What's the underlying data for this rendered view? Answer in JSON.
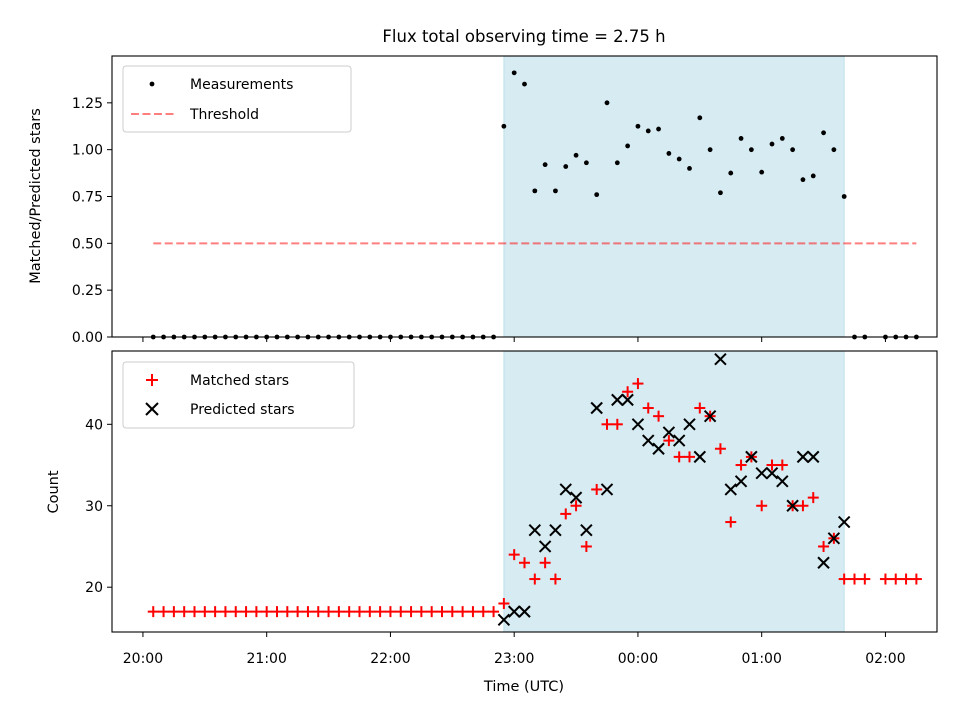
{
  "title": "Flux total observing time = 2.75 h",
  "colors": {
    "span": "#add8e6",
    "threshold": "#ff0000",
    "matched": "#ff0000",
    "predicted": "#000000",
    "measurements": "#000000"
  },
  "chart_data": [
    {
      "type": "scatter",
      "ylabel": "Matched/Predicted stars",
      "ylim": [
        0,
        1.5
      ],
      "yticks": [
        0.0,
        0.25,
        0.5,
        0.75,
        1.0,
        1.25
      ],
      "ytick_labels": [
        "0.00",
        "0.25",
        "0.50",
        "0.75",
        "1.00",
        "1.25"
      ],
      "grid": false,
      "legend": "upper left",
      "shaded_span": {
        "from": "22:55",
        "to": "01:40"
      },
      "threshold": {
        "name": "Threshold",
        "value": 0.5,
        "from": "20:05",
        "to": "02:15",
        "style": "dashed"
      },
      "series": [
        {
          "name": "Measurements",
          "marker": "dot",
          "points": [
            [
              "20:05",
              0
            ],
            [
              "20:10",
              0
            ],
            [
              "20:15",
              0
            ],
            [
              "20:20",
              0
            ],
            [
              "20:25",
              0
            ],
            [
              "20:30",
              0
            ],
            [
              "20:35",
              0
            ],
            [
              "20:40",
              0
            ],
            [
              "20:45",
              0
            ],
            [
              "20:50",
              0
            ],
            [
              "20:55",
              0
            ],
            [
              "21:00",
              0
            ],
            [
              "21:05",
              0
            ],
            [
              "21:10",
              0
            ],
            [
              "21:15",
              0
            ],
            [
              "21:20",
              0
            ],
            [
              "21:25",
              0
            ],
            [
              "21:30",
              0
            ],
            [
              "21:35",
              0
            ],
            [
              "21:40",
              0
            ],
            [
              "21:45",
              0
            ],
            [
              "21:50",
              0
            ],
            [
              "21:55",
              0
            ],
            [
              "22:00",
              0
            ],
            [
              "22:05",
              0
            ],
            [
              "22:10",
              0
            ],
            [
              "22:15",
              0
            ],
            [
              "22:20",
              0
            ],
            [
              "22:25",
              0
            ],
            [
              "22:30",
              0
            ],
            [
              "22:35",
              0
            ],
            [
              "22:40",
              0
            ],
            [
              "22:45",
              0
            ],
            [
              "22:50",
              0
            ],
            [
              "22:55",
              1.125
            ],
            [
              "23:00",
              1.41
            ],
            [
              "23:05",
              1.35
            ],
            [
              "23:10",
              0.78
            ],
            [
              "23:15",
              0.92
            ],
            [
              "23:20",
              0.78
            ],
            [
              "23:25",
              0.91
            ],
            [
              "23:30",
              0.97
            ],
            [
              "23:35",
              0.93
            ],
            [
              "23:40",
              0.76
            ],
            [
              "23:45",
              1.25
            ],
            [
              "23:50",
              0.93
            ],
            [
              "23:55",
              1.02
            ],
            [
              "00:00",
              1.125
            ],
            [
              "00:05",
              1.1
            ],
            [
              "00:10",
              1.11
            ],
            [
              "00:15",
              0.98
            ],
            [
              "00:20",
              0.95
            ],
            [
              "00:25",
              0.9
            ],
            [
              "00:30",
              1.17
            ],
            [
              "00:35",
              1.0
            ],
            [
              "00:40",
              0.77
            ],
            [
              "00:45",
              0.875
            ],
            [
              "00:50",
              1.06
            ],
            [
              "00:55",
              1.0
            ],
            [
              "01:00",
              0.88
            ],
            [
              "01:05",
              1.03
            ],
            [
              "01:10",
              1.06
            ],
            [
              "01:15",
              1.0
            ],
            [
              "01:20",
              0.84
            ],
            [
              "01:25",
              0.86
            ],
            [
              "01:30",
              1.09
            ],
            [
              "01:35",
              1.0
            ],
            [
              "01:40",
              0.75
            ],
            [
              "01:45",
              0
            ],
            [
              "01:50",
              0
            ],
            [
              "02:00",
              0
            ],
            [
              "02:05",
              0
            ],
            [
              "02:10",
              0
            ],
            [
              "02:15",
              0
            ]
          ]
        }
      ]
    },
    {
      "type": "scatter",
      "xlabel": "Time (UTC)",
      "ylabel": "Count",
      "ylim": [
        14.5,
        49
      ],
      "yticks": [
        20,
        30,
        40
      ],
      "ytick_labels": [
        "20",
        "30",
        "40"
      ],
      "xlim": [
        "19:45",
        "02:25"
      ],
      "xticks": [
        "20:00",
        "21:00",
        "22:00",
        "23:00",
        "00:00",
        "01:00",
        "02:00"
      ],
      "xtick_labels": [
        "20:00",
        "21:00",
        "22:00",
        "23:00",
        "00:00",
        "01:00",
        "02:00"
      ],
      "grid": false,
      "legend": "upper left",
      "shaded_span": {
        "from": "22:55",
        "to": "01:40"
      },
      "series": [
        {
          "name": "Matched stars",
          "marker": "plus",
          "points": [
            [
              "20:05",
              17
            ],
            [
              "20:10",
              17
            ],
            [
              "20:15",
              17
            ],
            [
              "20:20",
              17
            ],
            [
              "20:25",
              17
            ],
            [
              "20:30",
              17
            ],
            [
              "20:35",
              17
            ],
            [
              "20:40",
              17
            ],
            [
              "20:45",
              17
            ],
            [
              "20:50",
              17
            ],
            [
              "20:55",
              17
            ],
            [
              "21:00",
              17
            ],
            [
              "21:05",
              17
            ],
            [
              "21:10",
              17
            ],
            [
              "21:15",
              17
            ],
            [
              "21:20",
              17
            ],
            [
              "21:25",
              17
            ],
            [
              "21:30",
              17
            ],
            [
              "21:35",
              17
            ],
            [
              "21:40",
              17
            ],
            [
              "21:45",
              17
            ],
            [
              "21:50",
              17
            ],
            [
              "21:55",
              17
            ],
            [
              "22:00",
              17
            ],
            [
              "22:05",
              17
            ],
            [
              "22:10",
              17
            ],
            [
              "22:15",
              17
            ],
            [
              "22:20",
              17
            ],
            [
              "22:25",
              17
            ],
            [
              "22:30",
              17
            ],
            [
              "22:35",
              17
            ],
            [
              "22:40",
              17
            ],
            [
              "22:45",
              17
            ],
            [
              "22:50",
              17
            ],
            [
              "22:55",
              18
            ],
            [
              "23:00",
              24
            ],
            [
              "23:05",
              23
            ],
            [
              "23:10",
              21
            ],
            [
              "23:15",
              23
            ],
            [
              "23:20",
              21
            ],
            [
              "23:25",
              29
            ],
            [
              "23:30",
              30
            ],
            [
              "23:35",
              25
            ],
            [
              "23:40",
              32
            ],
            [
              "23:45",
              40
            ],
            [
              "23:50",
              40
            ],
            [
              "23:55",
              44
            ],
            [
              "00:00",
              45
            ],
            [
              "00:05",
              42
            ],
            [
              "00:10",
              41
            ],
            [
              "00:15",
              38
            ],
            [
              "00:20",
              36
            ],
            [
              "00:25",
              36
            ],
            [
              "00:30",
              42
            ],
            [
              "00:35",
              41
            ],
            [
              "00:40",
              37
            ],
            [
              "00:45",
              28
            ],
            [
              "00:50",
              35
            ],
            [
              "00:55",
              36
            ],
            [
              "01:00",
              30
            ],
            [
              "01:05",
              35
            ],
            [
              "01:10",
              35
            ],
            [
              "01:15",
              30
            ],
            [
              "01:20",
              30
            ],
            [
              "01:25",
              31
            ],
            [
              "01:30",
              25
            ],
            [
              "01:35",
              26
            ],
            [
              "01:40",
              21
            ],
            [
              "01:45",
              21
            ],
            [
              "01:50",
              21
            ],
            [
              "02:00",
              21
            ],
            [
              "02:05",
              21
            ],
            [
              "02:10",
              21
            ],
            [
              "02:15",
              21
            ]
          ]
        },
        {
          "name": "Predicted stars",
          "marker": "x",
          "points": [
            [
              "22:55",
              16
            ],
            [
              "23:00",
              17
            ],
            [
              "23:05",
              17
            ],
            [
              "23:10",
              27
            ],
            [
              "23:15",
              25
            ],
            [
              "23:20",
              27
            ],
            [
              "23:25",
              32
            ],
            [
              "23:30",
              31
            ],
            [
              "23:35",
              27
            ],
            [
              "23:40",
              42
            ],
            [
              "23:45",
              32
            ],
            [
              "23:50",
              43
            ],
            [
              "23:55",
              43
            ],
            [
              "00:00",
              40
            ],
            [
              "00:05",
              38
            ],
            [
              "00:10",
              37
            ],
            [
              "00:15",
              39
            ],
            [
              "00:20",
              38
            ],
            [
              "00:25",
              40
            ],
            [
              "00:30",
              36
            ],
            [
              "00:35",
              41
            ],
            [
              "00:40",
              48
            ],
            [
              "00:45",
              32
            ],
            [
              "00:50",
              33
            ],
            [
              "00:55",
              36
            ],
            [
              "01:00",
              34
            ],
            [
              "01:05",
              34
            ],
            [
              "01:10",
              33
            ],
            [
              "01:15",
              30
            ],
            [
              "01:20",
              36
            ],
            [
              "01:25",
              36
            ],
            [
              "01:30",
              23
            ],
            [
              "01:35",
              26
            ],
            [
              "01:40",
              28
            ]
          ]
        }
      ]
    }
  ]
}
